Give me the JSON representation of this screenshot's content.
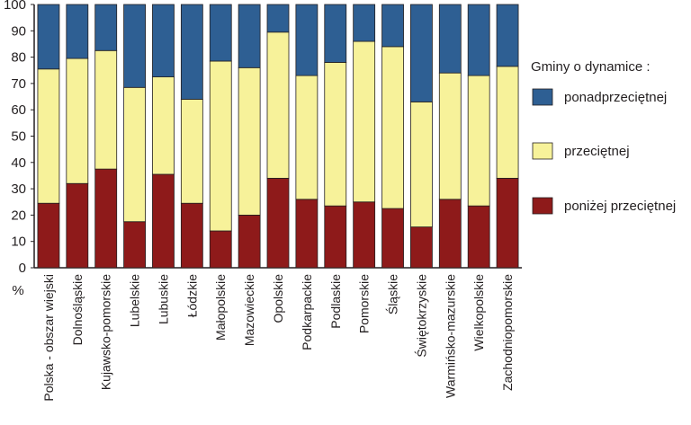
{
  "chart_data": {
    "type": "bar",
    "stacked": true,
    "title": "",
    "xlabel": "",
    "ylabel": "%",
    "ylim": [
      0,
      100
    ],
    "yticks": [
      0,
      10,
      20,
      30,
      40,
      50,
      60,
      70,
      80,
      90,
      100
    ],
    "grid": false,
    "legend_title": "Gminy o dynamice :",
    "legend_position": "right",
    "categories": [
      "Polska - obszar wiejski",
      "Dolnośląskie",
      "Kujawsko-pomorskie",
      "Lubelskie",
      "Lubuskie",
      "Łódzkie",
      "Małopolskie",
      "Mazowieckie",
      "Opolskie",
      "Podkarpackie",
      "Podlaskie",
      "Pomorskie",
      "Śląskie",
      "Świętokrzyskie",
      "Warmińsko-mazurskie",
      "Wielkopolskie",
      "Zachodniopomorskie"
    ],
    "series": [
      {
        "name": "poniżej przeciętnej",
        "color": "#8e1a1a",
        "values": [
          24.5,
          32,
          37.5,
          17.5,
          35.5,
          24.5,
          14,
          20,
          34,
          26,
          23.5,
          25,
          22.5,
          15.5,
          26,
          23.5,
          34
        ]
      },
      {
        "name": "przeciętnej",
        "color": "#f7f29a",
        "values": [
          51,
          47.5,
          45,
          51,
          37,
          39.5,
          64.5,
          56,
          55.5,
          47,
          54.5,
          61,
          61.5,
          47.5,
          48,
          49.5,
          42.5
        ]
      },
      {
        "name": "ponadprzeciętnej",
        "color": "#2e5f93",
        "values": [
          24.5,
          20.5,
          17.5,
          31.5,
          27.5,
          36,
          21.5,
          24,
          10.5,
          27,
          22,
          14,
          16,
          37,
          26,
          27,
          23.5
        ]
      }
    ],
    "legend_order": [
      "ponadprzeciętnej",
      "przeciętnej",
      "poniżej przeciętnej"
    ]
  }
}
